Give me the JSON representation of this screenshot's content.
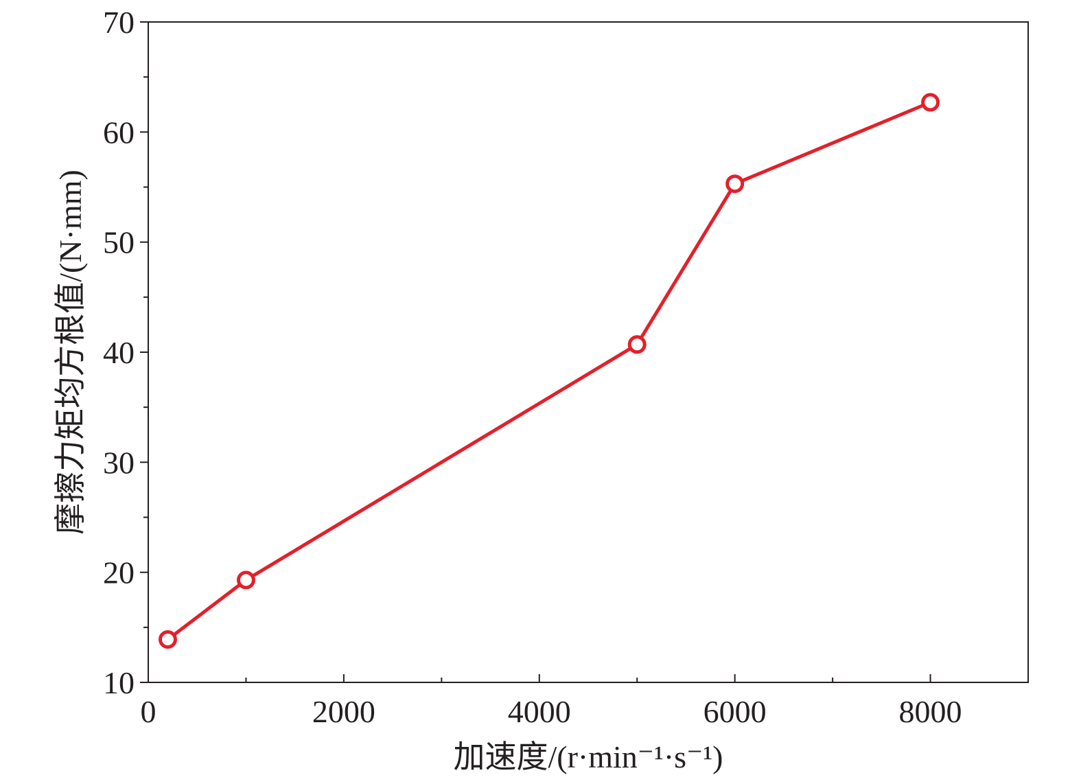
{
  "chart_data": {
    "type": "line",
    "title": "",
    "xlabel": "加速度/(r·min⁻¹·s⁻¹)",
    "ylabel": "摩擦力矩均方根值/(N·mm)",
    "xlim": [
      0,
      9000
    ],
    "ylim": [
      10,
      70
    ],
    "x_ticks": [
      0,
      2000,
      4000,
      6000,
      8000
    ],
    "x_tick_labels": [
      "0",
      "2000",
      "4000",
      "6000",
      "8000"
    ],
    "x_minor_ticks": [
      1000,
      3000,
      5000,
      7000
    ],
    "y_ticks": [
      10,
      20,
      30,
      40,
      50,
      60,
      70
    ],
    "y_tick_labels": [
      "10",
      "20",
      "30",
      "40",
      "50",
      "60",
      "70"
    ],
    "y_minor_ticks": [
      15,
      25,
      35,
      45,
      55,
      65
    ],
    "grid": false,
    "legend": "none",
    "series": [
      {
        "color": "#e3202a",
        "marker": "open-circle",
        "x": [
          200,
          1000,
          5000,
          6000,
          8000
        ],
        "y": [
          13.9,
          19.3,
          40.7,
          55.3,
          62.7
        ]
      }
    ]
  }
}
